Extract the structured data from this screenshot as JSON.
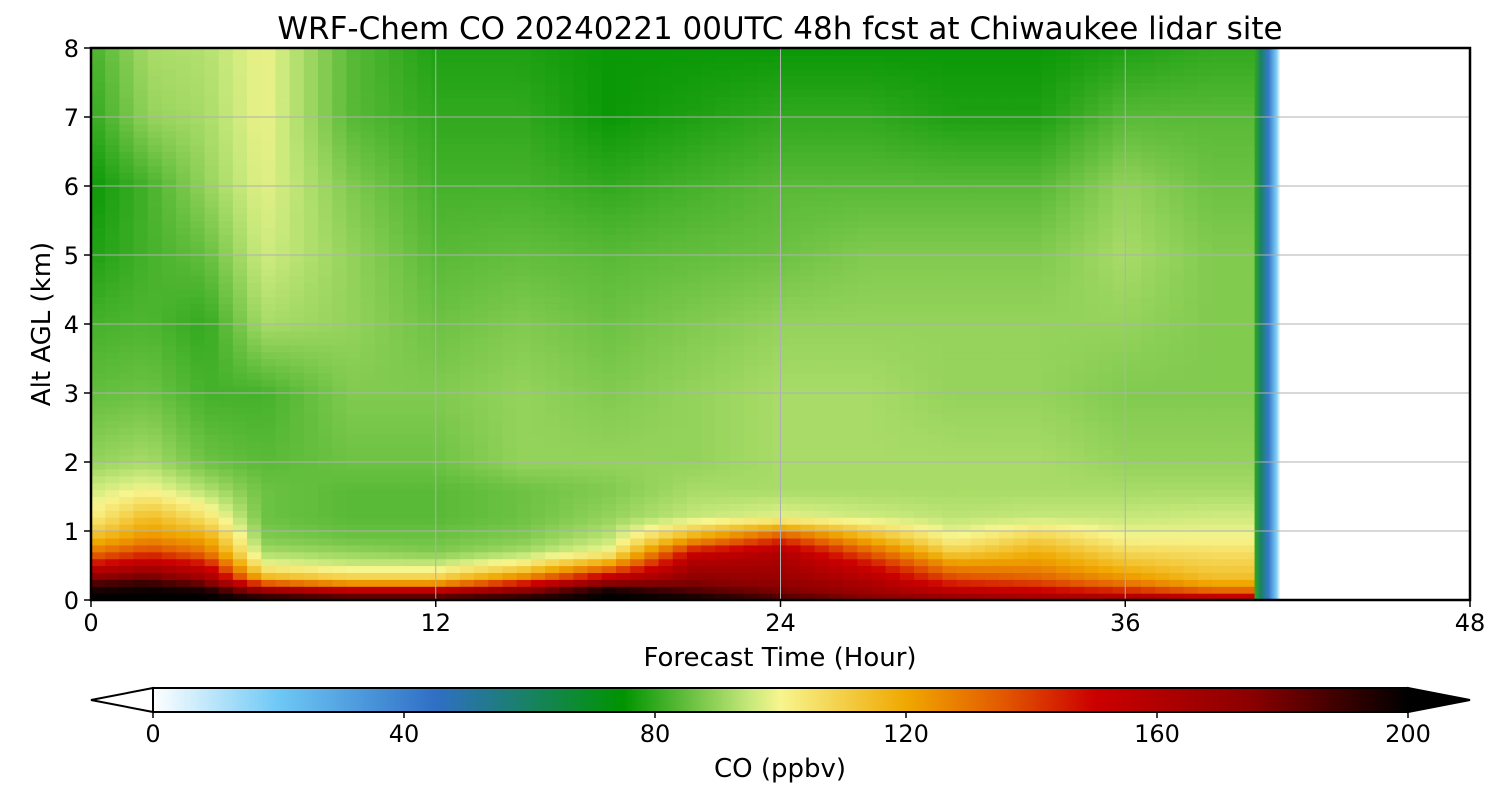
{
  "chart_data": {
    "type": "heatmap",
    "title": "WRF-Chem CO  20240221 00UTC 48h fcst at Chiwaukee lidar site",
    "xlabel": "Forecast Time (Hour)",
    "ylabel": "Alt AGL (km)",
    "xlim": [
      0,
      48
    ],
    "ylim": [
      0,
      8
    ],
    "xticks": [
      "0",
      "12",
      "24",
      "36",
      "48"
    ],
    "yticks": [
      "0",
      "1",
      "2",
      "3",
      "4",
      "5",
      "6",
      "7",
      "8"
    ],
    "grid": true,
    "data_extent_hours": 40.5,
    "colorbar": {
      "label": "CO  (ppbv)",
      "range": [
        0,
        200
      ],
      "extend": "both",
      "ticks": [
        "0",
        "40",
        "80",
        "120",
        "160",
        "200"
      ],
      "stops": [
        {
          "value": 0,
          "color": "#ffffff"
        },
        {
          "value": 20,
          "color": "#6ec8f5"
        },
        {
          "value": 45,
          "color": "#2f6fc5"
        },
        {
          "value": 75,
          "color": "#009400"
        },
        {
          "value": 95,
          "color": "#c6e87a"
        },
        {
          "value": 100,
          "color": "#f7f58e"
        },
        {
          "value": 120,
          "color": "#f0a800"
        },
        {
          "value": 135,
          "color": "#e35b00"
        },
        {
          "value": 150,
          "color": "#cc0000"
        },
        {
          "value": 175,
          "color": "#8b0000"
        },
        {
          "value": 200,
          "color": "#000000"
        }
      ]
    },
    "profile_hours": [
      0,
      2,
      4,
      6,
      9,
      12,
      15,
      18,
      21,
      24,
      27,
      30,
      33,
      36,
      39
    ],
    "profile_altitudes_km": [
      0,
      0.1,
      0.2,
      0.3,
      0.5,
      0.7,
      0.9,
      1.2,
      1.6,
      2,
      3,
      4,
      5,
      6,
      7,
      8
    ],
    "co_ppbv": [
      [
        200,
        200,
        190,
        180,
        150,
        130,
        115,
        102,
        96,
        90,
        85,
        82,
        78,
        76,
        80,
        82
      ],
      [
        200,
        200,
        195,
        185,
        160,
        140,
        125,
        115,
        100,
        92,
        86,
        83,
        82,
        82,
        90,
        92
      ],
      [
        200,
        200,
        190,
        170,
        150,
        130,
        120,
        105,
        93,
        86,
        82,
        80,
        85,
        90,
        92,
        93
      ],
      [
        195,
        185,
        150,
        120,
        100,
        92,
        88,
        86,
        86,
        84,
        82,
        92,
        96,
        98,
        99,
        99
      ],
      [
        190,
        175,
        135,
        112,
        96,
        90,
        86,
        84,
        84,
        86,
        88,
        90,
        90,
        88,
        84,
        84
      ],
      [
        190,
        175,
        135,
        112,
        96,
        88,
        86,
        84,
        84,
        86,
        88,
        86,
        84,
        82,
        80,
        78
      ],
      [
        195,
        185,
        160,
        130,
        105,
        92,
        88,
        86,
        86,
        90,
        90,
        88,
        85,
        82,
        80,
        78
      ],
      [
        200,
        200,
        190,
        160,
        125,
        100,
        94,
        90,
        88,
        90,
        88,
        86,
        84,
        80,
        76,
        76
      ],
      [
        200,
        190,
        180,
        175,
        165,
        150,
        120,
        95,
        92,
        90,
        90,
        88,
        85,
        82,
        78,
        76
      ],
      [
        190,
        180,
        175,
        170,
        165,
        160,
        140,
        98,
        92,
        92,
        92,
        90,
        86,
        84,
        80,
        76
      ],
      [
        180,
        170,
        165,
        160,
        150,
        135,
        118,
        96,
        92,
        92,
        92,
        90,
        88,
        84,
        80,
        76
      ],
      [
        175,
        160,
        150,
        140,
        125,
        110,
        100,
        94,
        92,
        92,
        90,
        90,
        88,
        84,
        78,
        76
      ],
      [
        170,
        155,
        145,
        135,
        125,
        118,
        110,
        95,
        92,
        92,
        90,
        90,
        88,
        84,
        78,
        76
      ],
      [
        170,
        150,
        135,
        125,
        115,
        108,
        100,
        95,
        92,
        90,
        88,
        90,
        92,
        90,
        84,
        78
      ],
      [
        165,
        140,
        125,
        115,
        110,
        106,
        100,
        96,
        92,
        90,
        88,
        88,
        88,
        86,
        84,
        80
      ]
    ]
  }
}
